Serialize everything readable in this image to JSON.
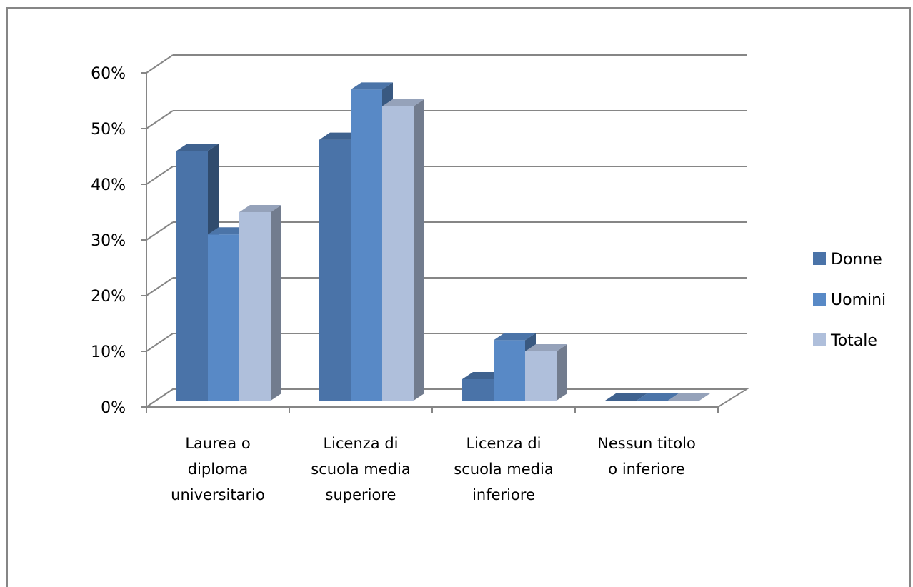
{
  "chart_data": {
    "type": "bar",
    "categories": [
      [
        "Laurea o",
        "diploma",
        "universitario"
      ],
      [
        "Licenza di",
        "scuola media",
        "superiore"
      ],
      [
        "Licenza di",
        "scuola media",
        "inferiore"
      ],
      [
        "Nessun titolo",
        "o inferiore"
      ]
    ],
    "series": [
      {
        "name": "Donne",
        "values": [
          46,
          48,
          5,
          0
        ],
        "color": "#4a73a8"
      },
      {
        "name": "Uomini",
        "values": [
          31,
          57,
          12,
          0
        ],
        "color": "#5889c6"
      },
      {
        "name": "Totale",
        "values": [
          35,
          54,
          10,
          0
        ],
        "color": "#afbfdb"
      }
    ],
    "y_ticks": [
      "0%",
      "10%",
      "20%",
      "30%",
      "40%",
      "50%",
      "60%"
    ],
    "ylim": [
      0,
      60
    ],
    "grid": true,
    "legend": "right",
    "style": "3d-clustered-column"
  }
}
